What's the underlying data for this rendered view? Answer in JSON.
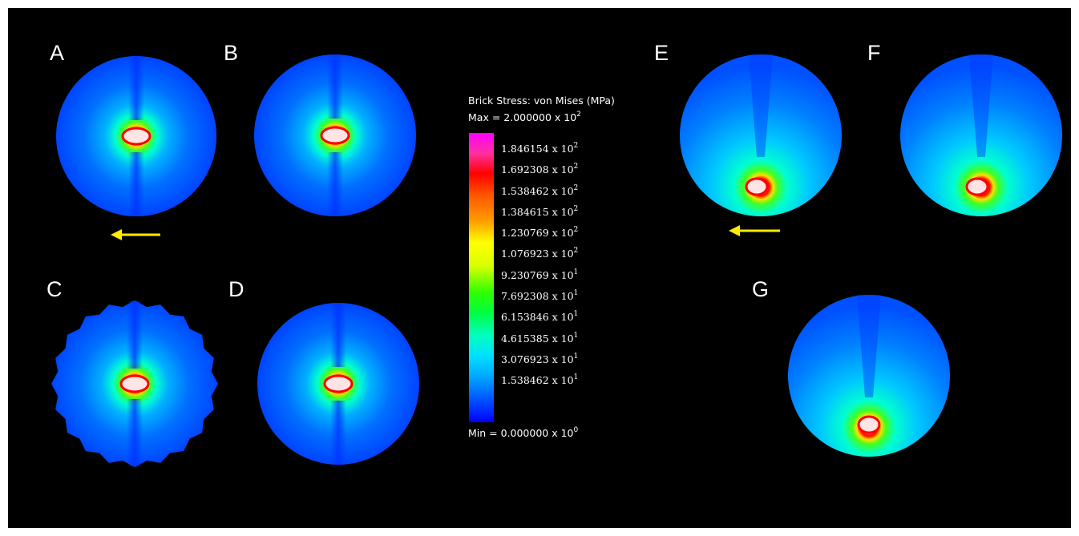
{
  "panels": {
    "a": "A",
    "b": "B",
    "c": "C",
    "d": "D",
    "e": "E",
    "f": "F",
    "g": "G"
  },
  "legend": {
    "title": "Brick Stress: von Mises (MPa)",
    "max": {
      "prefix": "Max = 2.000000 x 10",
      "exp": "2"
    },
    "min": {
      "prefix": "Min = 0.000000 x 10",
      "exp": "0"
    },
    "ticks": [
      {
        "mantissa": "1.846154 x 10",
        "exp": "2"
      },
      {
        "mantissa": "1.692308 x 10",
        "exp": "2"
      },
      {
        "mantissa": "1.538462 x 10",
        "exp": "2"
      },
      {
        "mantissa": "1.384615 x 10",
        "exp": "2"
      },
      {
        "mantissa": "1.230769 x 10",
        "exp": "2"
      },
      {
        "mantissa": "1.076923 x 10",
        "exp": "2"
      },
      {
        "mantissa": "9.230769 x 10",
        "exp": "1"
      },
      {
        "mantissa": "7.692308 x 10",
        "exp": "1"
      },
      {
        "mantissa": "6.153846 x 10",
        "exp": "1"
      },
      {
        "mantissa": "4.615385 x 10",
        "exp": "1"
      },
      {
        "mantissa": "3.076923 x 10",
        "exp": "1"
      },
      {
        "mantissa": "1.538462 x 10",
        "exp": "1"
      }
    ]
  },
  "colors": {
    "background": "#000000",
    "arrow": "#ffea00",
    "low_stress": "#0044ff",
    "high_stress": "#ff00ff"
  }
}
